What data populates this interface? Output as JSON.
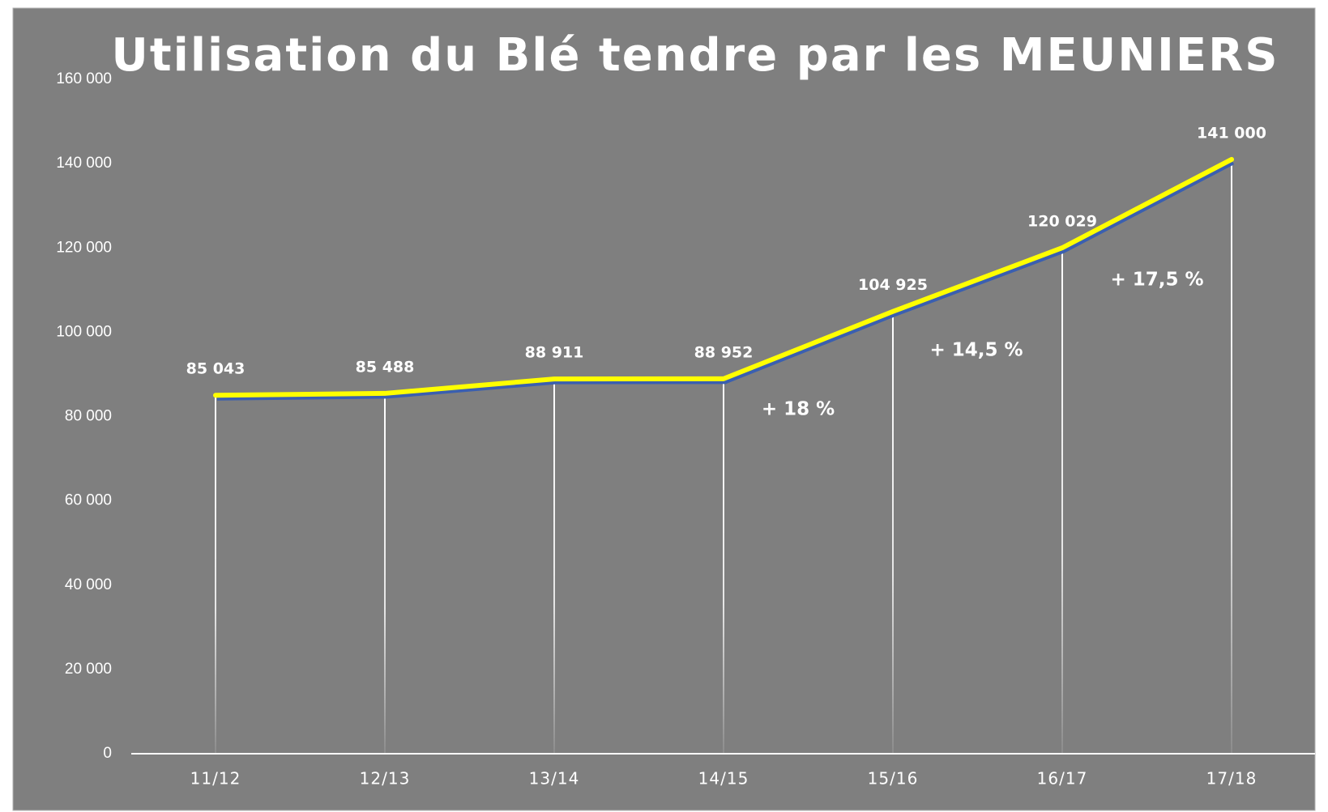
{
  "chart_data": {
    "type": "line",
    "title": "Utilisation du Blé tendre par les MEUNIERS",
    "categories": [
      "11/12",
      "12/13",
      "13/14",
      "14/15",
      "15/16",
      "16/17",
      "17/18"
    ],
    "values": [
      85043,
      85488,
      88911,
      88952,
      104925,
      120029,
      141000
    ],
    "value_labels": [
      "85 043",
      "85 488",
      "88 911",
      "88 952",
      "104 925",
      "120 029",
      "141 000"
    ],
    "color": "#ffff00",
    "ylim": [
      0,
      160000
    ],
    "yticks": [
      0,
      {
        "value": 20000,
        "label": "20 000"
      },
      {
        "value": 40000,
        "label": "40 000"
      },
      {
        "value": 60000,
        "label": "60 000"
      },
      {
        "value": 80000,
        "label": "80 000"
      },
      {
        "value": 100000,
        "label": "100 000"
      },
      {
        "value": 120000,
        "label": "120 000"
      },
      {
        "value": 140000,
        "label": "140 000"
      },
      {
        "value": 160000,
        "label": "160 000"
      }
    ],
    "annotations": [
      "+ 18 %",
      "+ 14,5 %",
      "+ 17,5 %"
    ]
  }
}
